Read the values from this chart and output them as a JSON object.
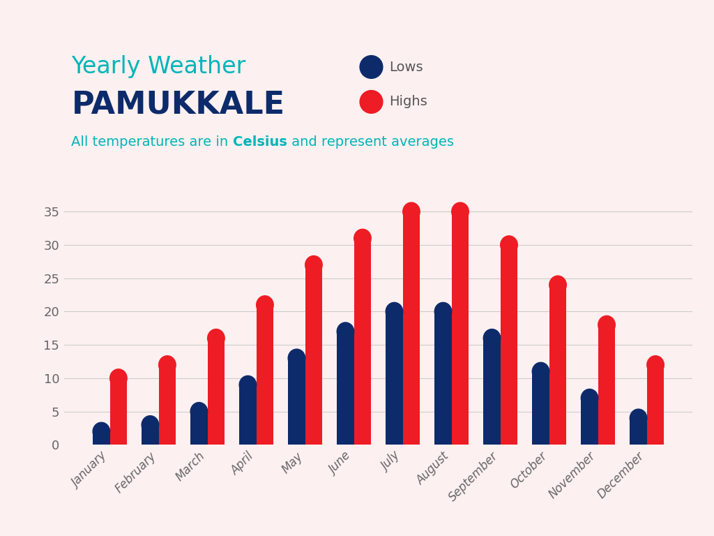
{
  "months": [
    "January",
    "February",
    "March",
    "April",
    "May",
    "June",
    "July",
    "August",
    "September",
    "October",
    "November",
    "December"
  ],
  "lows": [
    2,
    3,
    5,
    9,
    13,
    17,
    20,
    20,
    16,
    11,
    7,
    4
  ],
  "highs": [
    10,
    12,
    16,
    21,
    27,
    31,
    35,
    35,
    30,
    24,
    18,
    12
  ],
  "low_color": "#0d2b6b",
  "high_color": "#ee1c24",
  "background_color": "#fdf0f0",
  "title_line1": "Yearly Weather",
  "title_line2": "PAMUKKALE",
  "subtitle_normal": "All temperatures are in ",
  "subtitle_bold": "Celsius",
  "subtitle_end": " and represent averages",
  "title_color": "#00b5b8",
  "title2_color": "#0d2b6b",
  "subtitle_color": "#00b5b8",
  "legend_lows_label": "Lows",
  "legend_highs_label": "Highs",
  "legend_text_color": "#555555",
  "ylim": [
    0,
    37
  ],
  "yticks": [
    0,
    5,
    10,
    15,
    20,
    25,
    30,
    35
  ],
  "grid_color": "#cccccc",
  "tick_color": "#666666",
  "bar_width": 0.35
}
